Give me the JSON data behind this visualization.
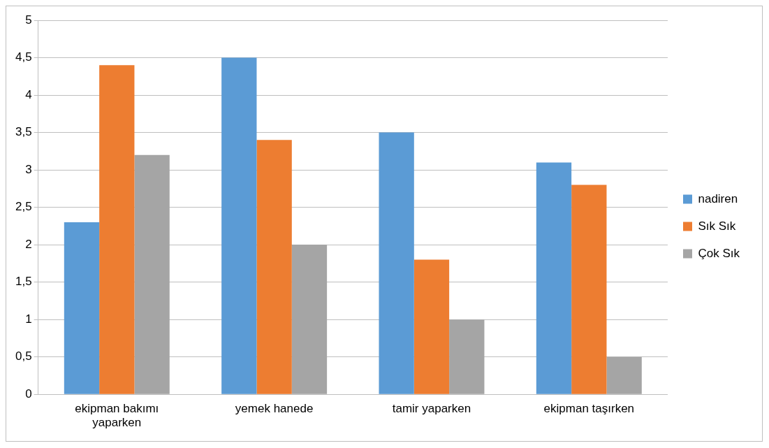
{
  "chart_data": {
    "type": "bar",
    "categories": [
      "ekipman bakımı yaparken",
      "yemek hanede",
      "tamir yaparken",
      "ekipman taşırken"
    ],
    "series": [
      {
        "name": "nadiren",
        "color": "#5b9bd5",
        "values": [
          2.3,
          4.5,
          3.5,
          3.1
        ]
      },
      {
        "name": "Sık Sık",
        "color": "#ed7d31",
        "values": [
          4.4,
          3.4,
          1.8,
          2.8
        ]
      },
      {
        "name": "Çok Sık",
        "color": "#a5a5a5",
        "values": [
          3.2,
          2.0,
          1.0,
          0.5
        ]
      }
    ],
    "ylim": [
      0,
      5
    ],
    "yticks": [
      0,
      {
        "value": 0.5,
        "label": "0,5"
      },
      1,
      {
        "value": 1.5,
        "label": "1,5"
      },
      2,
      {
        "value": 2.5,
        "label": "2,5"
      },
      3,
      {
        "value": 3.5,
        "label": "3,5"
      },
      4,
      {
        "value": 4.5,
        "label": "4,5"
      },
      5
    ],
    "grid": "y",
    "legend": "right"
  }
}
